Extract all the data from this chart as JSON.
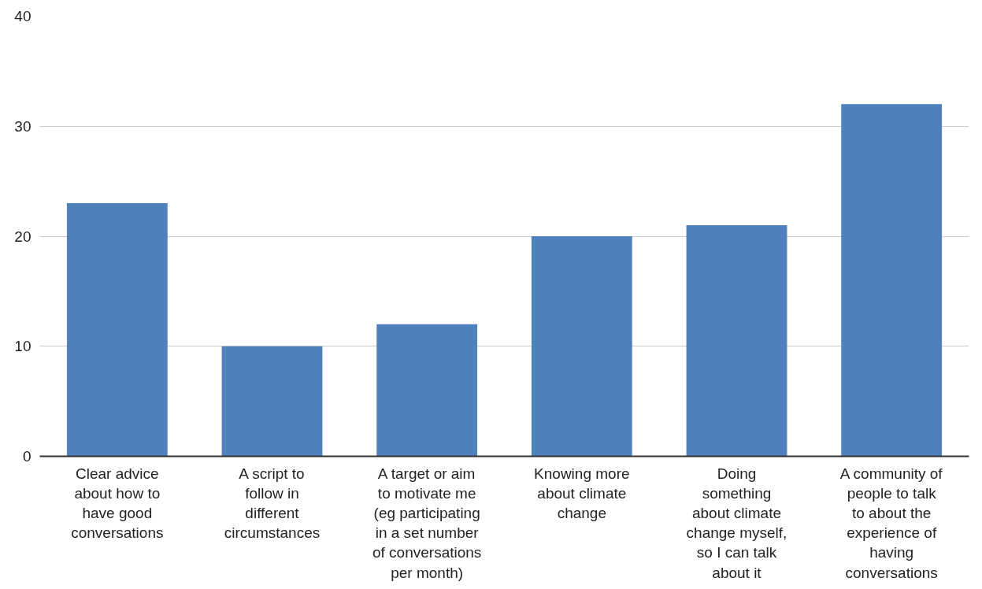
{
  "chart_data": {
    "type": "bar",
    "categories": [
      "Clear advice\nabout how to\nhave good\nconversations",
      "A script to\nfollow in\ndifferent\ncircumstances",
      "A target or aim\nto motivate me\n(eg participating\nin a set number\nof conversations\nper month)",
      "Knowing more\nabout climate\nchange",
      "Doing\nsomething\nabout climate\nchange myself,\nso I can talk\nabout it",
      "A community of\npeople to talk\nto about the\nexperience of\nhaving\nconversations"
    ],
    "values": [
      23,
      10,
      12,
      20,
      21,
      32
    ],
    "color": "#4f81bd",
    "ylim": [
      0,
      40
    ],
    "yticks": [
      0,
      10,
      20,
      30,
      40
    ],
    "grid": "y"
  }
}
